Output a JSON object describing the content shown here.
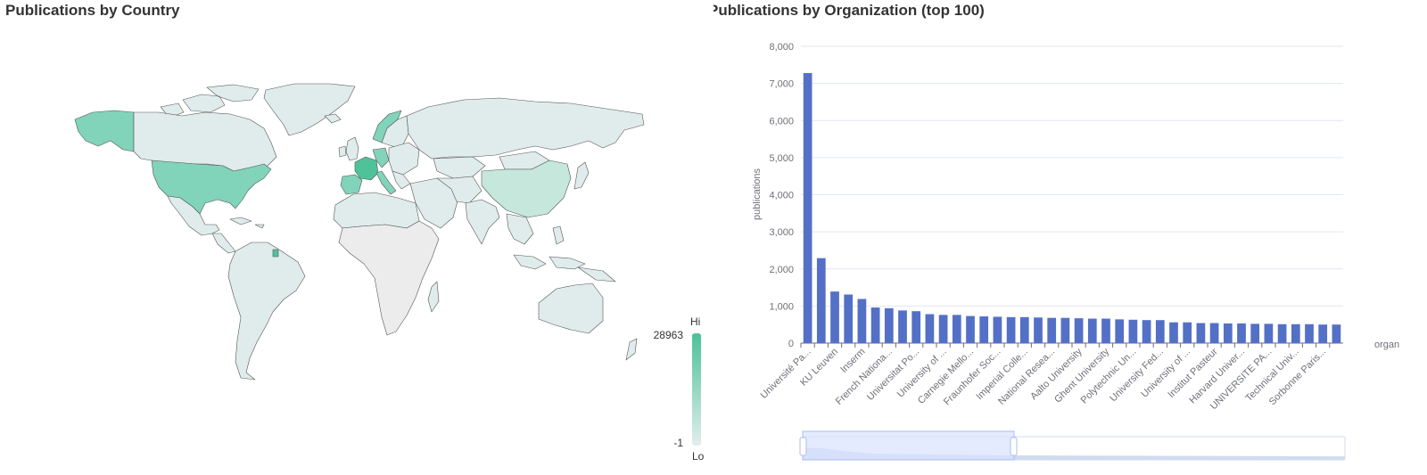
{
  "left_panel": {
    "title": "Publications by Country"
  },
  "right_panel": {
    "title": "Publications by Organization (top 100)"
  },
  "visual_map": {
    "max_value": "28963",
    "min_value": "-1",
    "high_label": "Hi",
    "low_label": "Lo",
    "color_high": "#4fc29a",
    "color_low": "#dfeceb",
    "color_nodata": "#ececec"
  },
  "chart_data": [
    {
      "type": "map",
      "title": "Publications by Country",
      "range": [
        -1,
        28963
      ],
      "visible_scale_labels": [
        "28963",
        "-1"
      ],
      "highlighted_regions": [
        "France",
        "Spain",
        "Italy",
        "Germany",
        "United States",
        "Alaska",
        "Norway",
        "French Guiana"
      ],
      "colors": {
        "low": "#dfeceb",
        "high": "#4fc29a",
        "no_data": "#ececec"
      }
    },
    {
      "type": "bar",
      "title": "Publications by Organization (top 100)",
      "ylabel": "publications",
      "xlabel": "organ",
      "ylim": [
        0,
        8000
      ],
      "yticks": [
        0,
        1000,
        2000,
        3000,
        4000,
        5000,
        6000,
        7000,
        8000
      ],
      "bar_color": "#5470c6",
      "categories": [
        "Université Pa...",
        "",
        "KU Leuven",
        "",
        "Inserm",
        "",
        "French Nationa...",
        "",
        "Universitat Po...",
        "",
        "University of ...",
        "",
        "Carnegie Mello...",
        "",
        "Fraunhofer Soc...",
        "",
        "Imperial Colle...",
        "",
        "National Resea...",
        "",
        "Aalto University",
        "",
        "Ghent University",
        "",
        "Polytechnic Un...",
        "",
        "University Fed...",
        "",
        "University of ...",
        "",
        "Institut Pasteur",
        "",
        "Harvard Univer...",
        "",
        "UNIVERSITE PA...",
        "",
        "Technical Univ...",
        "",
        "Sorbonne Paris...",
        ""
      ],
      "values": [
        7280,
        2290,
        1390,
        1310,
        1190,
        960,
        940,
        880,
        860,
        780,
        760,
        760,
        730,
        720,
        710,
        700,
        700,
        690,
        680,
        680,
        670,
        660,
        660,
        640,
        630,
        620,
        620,
        560,
        560,
        540,
        540,
        530,
        530,
        520,
        520,
        510,
        510,
        510,
        500,
        500
      ]
    }
  ]
}
